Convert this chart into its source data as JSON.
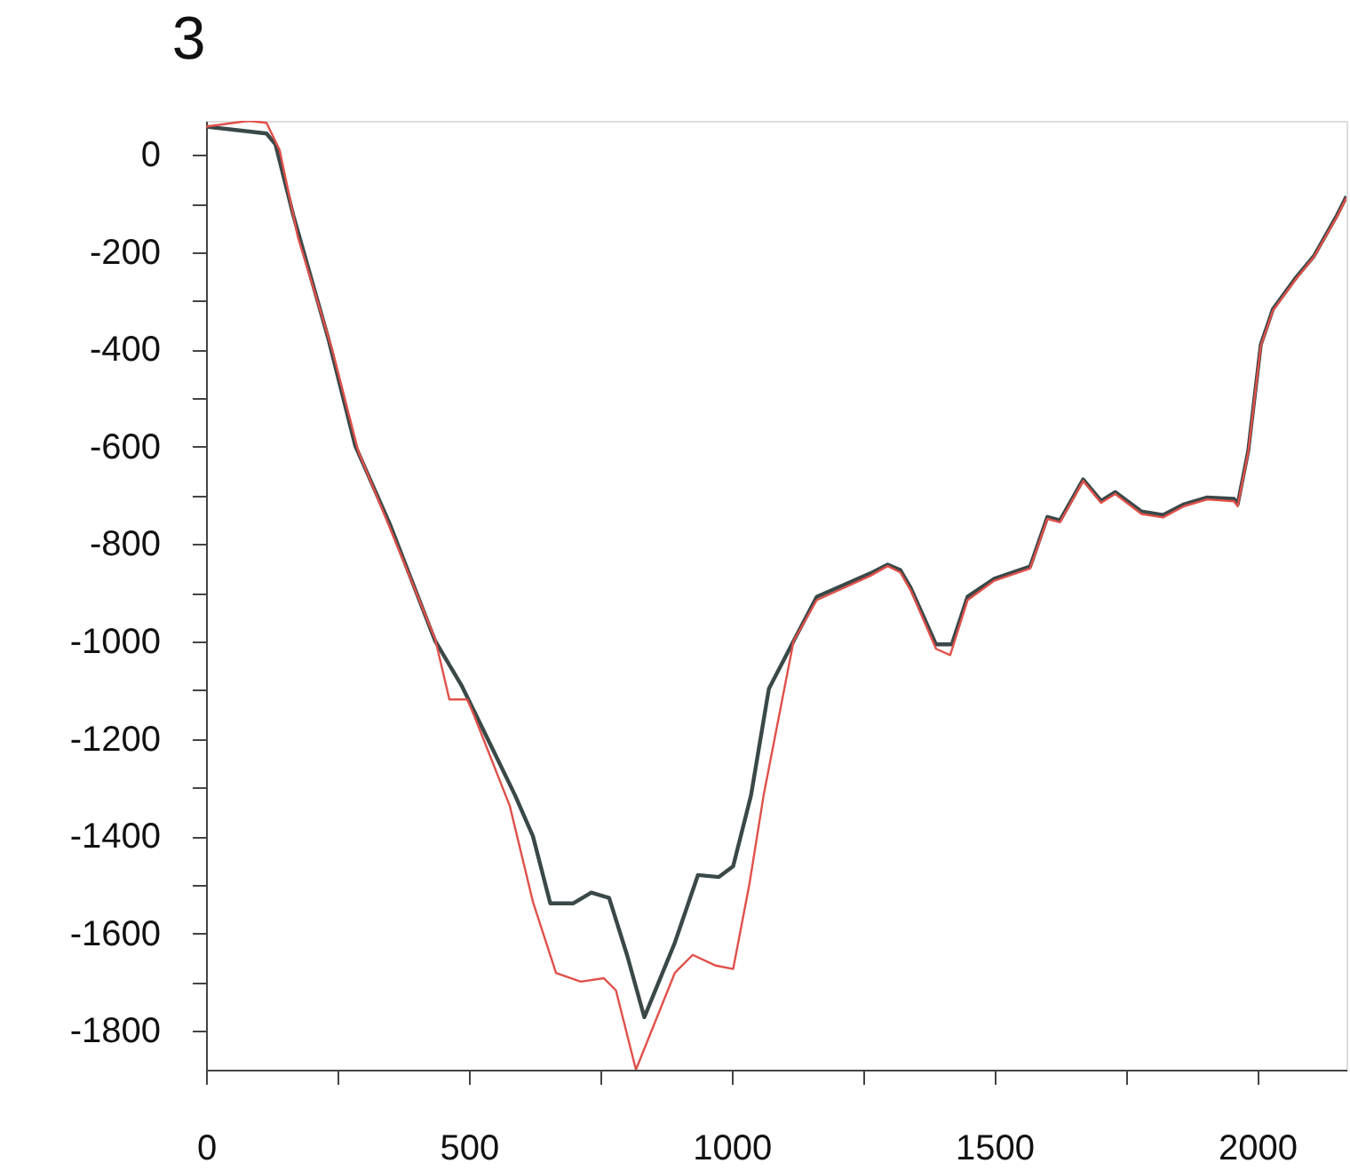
{
  "chart_data": {
    "type": "line",
    "title": "3",
    "xlim": [
      0,
      2170
    ],
    "ylim": [
      -1880,
      70
    ],
    "xticks": [
      0,
      {
        "value": 250,
        "label": null
      },
      500,
      {
        "value": 750,
        "label": null
      },
      1000,
      {
        "value": 1250,
        "label": null
      },
      1500,
      {
        "value": 1750,
        "label": null
      },
      2000
    ],
    "yticks": [
      -1800,
      {
        "value": -1700,
        "label": null
      },
      -1600,
      {
        "value": -1500,
        "label": null
      },
      -1400,
      {
        "value": -1300,
        "label": null
      },
      -1200,
      {
        "value": -1100,
        "label": null
      },
      -1000,
      {
        "value": -900,
        "label": null
      },
      -800,
      {
        "value": -700,
        "label": null
      },
      -600,
      {
        "value": -500,
        "label": null
      },
      -400,
      {
        "value": -300,
        "label": null
      },
      -200,
      {
        "value": -100,
        "label": null
      },
      0
    ],
    "grid": false,
    "line_style": "solid",
    "marker": "none",
    "series": [
      {
        "color": "#3a4848",
        "x": [
          0,
          115,
          132,
          166,
          233,
          284,
          351,
          436,
          486,
          544,
          588,
          622,
          655,
          699,
          733,
          767,
          801,
          834,
          892,
          936,
          976,
          1003,
          1037,
          1071,
          1118,
          1162,
          1264,
          1297,
          1321,
          1341,
          1389,
          1419,
          1449,
          1500,
          1568,
          1601,
          1625,
          1669,
          1703,
          1730,
          1780,
          1821,
          1861,
          1905,
          1956,
          1963,
          1983,
          2007,
          2030,
          2074,
          2108,
          2152,
          2170
        ],
        "values": [
          58,
          44,
          22,
          -124,
          -379,
          -598,
          -762,
          -999,
          -1090,
          -1218,
          -1316,
          -1400,
          -1538,
          -1538,
          -1516,
          -1527,
          -1644,
          -1772,
          -1619,
          -1480,
          -1484,
          -1462,
          -1316,
          -1097,
          -999,
          -908,
          -860,
          -842,
          -853,
          -890,
          -1006,
          -1006,
          -908,
          -871,
          -846,
          -744,
          -751,
          -667,
          -711,
          -693,
          -733,
          -740,
          -718,
          -704,
          -707,
          -718,
          -609,
          -390,
          -317,
          -252,
          -208,
          -124,
          -85
        ]
      },
      {
        "color": "#e0504a",
        "x": [
          0,
          81,
          115,
          140,
          175,
          240,
          290,
          351,
          436,
          463,
          497,
          510,
          578,
          622,
          666,
          713,
          757,
          780,
          818,
          892,
          926,
          970,
          1003,
          1034,
          1061,
          1118,
          1162,
          1264,
          1297,
          1321,
          1341,
          1389,
          1416,
          1449,
          1500,
          1568,
          1601,
          1625,
          1669,
          1703,
          1730,
          1780,
          1821,
          1861,
          1905,
          1956,
          1963,
          1983,
          2007,
          2030,
          2074,
          2108,
          2152,
          2170
        ],
        "values": [
          58,
          70,
          66,
          10,
          -170,
          -400,
          -610,
          -770,
          -995,
          -1119,
          -1119,
          -1152,
          -1338,
          -1535,
          -1681,
          -1699,
          -1692,
          -1717,
          -1880,
          -1681,
          -1644,
          -1666,
          -1673,
          -1498,
          -1316,
          -999,
          -915,
          -865,
          -845,
          -858,
          -895,
          -1015,
          -1028,
          -915,
          -875,
          -850,
          -748,
          -755,
          -670,
          -715,
          -697,
          -738,
          -745,
          -722,
          -708,
          -712,
          -722,
          -612,
          -393,
          -320,
          -255,
          -210,
          -127,
          -88
        ]
      }
    ]
  }
}
